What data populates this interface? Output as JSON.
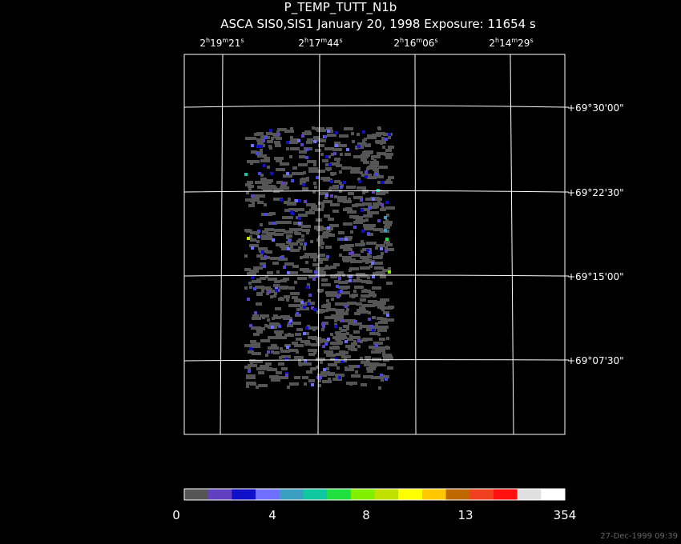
{
  "header": {
    "title": "P_TEMP_TUTT_N1b",
    "subtitle": "ASCA SIS0,SIS1 January 20, 1998 Exposure: 11654 s"
  },
  "ra_labels": [
    [
      "2",
      "h",
      "19",
      "m",
      "21",
      "s"
    ],
    [
      "2",
      "h",
      "17",
      "m",
      "44",
      "s"
    ],
    [
      "2",
      "h",
      "16",
      "m",
      "06",
      "s"
    ],
    [
      "2",
      "h",
      "14",
      "m",
      "29",
      "s"
    ]
  ],
  "dec_labels": [
    "+69°30'00\"",
    "+69°22'30\"",
    "+69°15'00\"",
    "+69°07'30\""
  ],
  "colorbar": {
    "colors": [
      "#555555",
      "#6040c0",
      "#1010c8",
      "#7070ff",
      "#3a9ec0",
      "#10c8a0",
      "#20e040",
      "#80f000",
      "#c0e000",
      "#ffff00",
      "#ffc800",
      "#c06800",
      "#f04020",
      "#ff1010",
      "#e0e0e0",
      "#ffffff"
    ],
    "labels": [
      "0",
      "4",
      "8",
      "13",
      "354"
    ]
  },
  "timestamp": "27-Dec-1999 09:39"
}
